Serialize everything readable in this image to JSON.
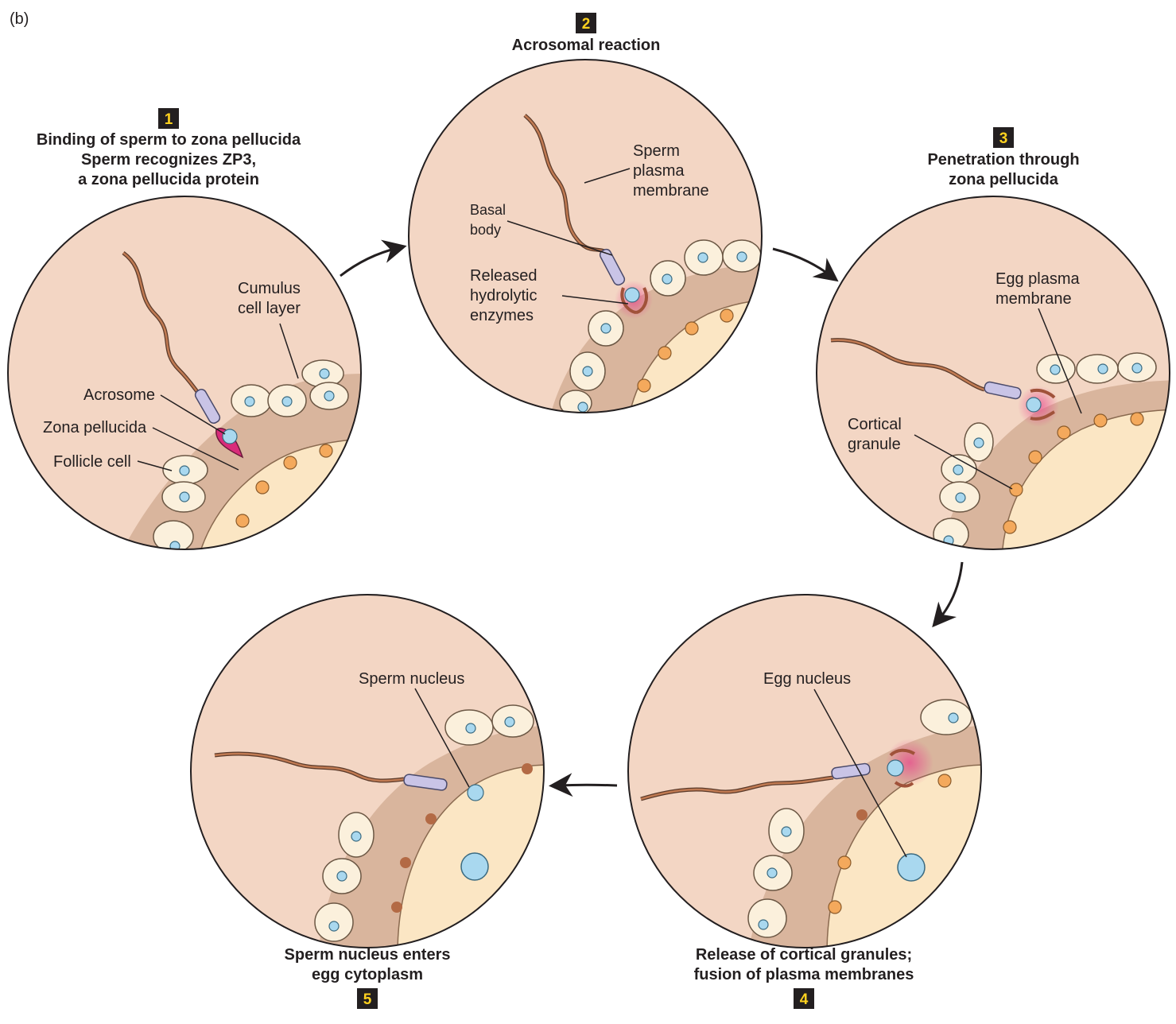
{
  "panel_label": "(b)",
  "steps": [
    {
      "number": "1",
      "title": [
        "Binding of sperm to zona pellucida",
        "Sperm recognizes ZP3,",
        "a zona pellucida protein"
      ]
    },
    {
      "number": "2",
      "title": [
        "Acrosomal reaction"
      ]
    },
    {
      "number": "3",
      "title": [
        "Penetration through",
        "zona pellucida"
      ]
    },
    {
      "number": "4",
      "title": [
        "Release of cortical granules;",
        "fusion of plasma membranes"
      ]
    },
    {
      "number": "5",
      "title": [
        "Sperm nucleus enters",
        "egg cytoplasm"
      ]
    }
  ],
  "labels": {
    "cumulus": [
      "Cumulus",
      "cell layer"
    ],
    "acrosome": "Acrosome",
    "zona_pellucida": "Zona pellucida",
    "follicle_cell": "Follicle cell",
    "sperm_plasma_membrane": [
      "Sperm",
      "plasma",
      "membrane"
    ],
    "basal_body": [
      "Basal",
      "body"
    ],
    "released_enzymes": [
      "Released",
      "hydrolytic",
      "enzymes"
    ],
    "egg_plasma_membrane": [
      "Egg plasma",
      "membrane"
    ],
    "cortical_granule": [
      "Cortical",
      "granule"
    ],
    "egg_nucleus": "Egg nucleus",
    "sperm_nucleus": "Sperm nucleus"
  },
  "colors": {
    "background": "#f3d6c4",
    "zona": "#d9b59d",
    "egg": "#fbe6c4",
    "cell": "#fbf0dc",
    "nucleus": "#a9d8ef",
    "granule": "#f4a95c",
    "sperm_body": "#c07a52",
    "midpiece": "#c9c4e6",
    "acrosome": "#d92c7a",
    "number_box": "#231f20",
    "number_text": "#ffd21f"
  }
}
